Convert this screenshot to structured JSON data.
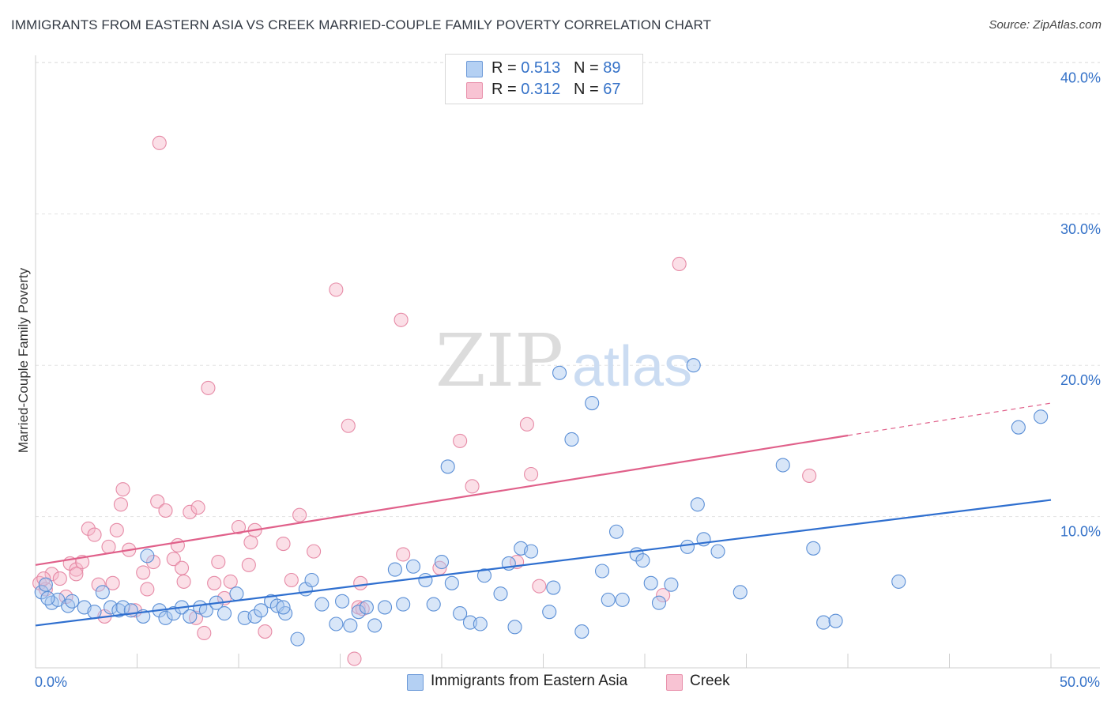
{
  "title": "IMMIGRANTS FROM EASTERN ASIA VS CREEK MARRIED-COUPLE FAMILY POVERTY CORRELATION CHART",
  "source": "Source: ZipAtlas.com",
  "watermark": {
    "zip": "ZIP",
    "atlas": "atlas"
  },
  "colors": {
    "blue_fill": "#a9c8f0",
    "blue_stroke": "#5b8fd6",
    "blue_line": "#2f6fcf",
    "pink_fill": "#f6b7c9",
    "pink_stroke": "#e68aa6",
    "pink_line": "#e0608a",
    "axis_text": "#3572c8",
    "grid": "#e3e3e3"
  },
  "legend": {
    "blue": {
      "r_label": "R = ",
      "r_value": "0.513",
      "n_label": "N = ",
      "n_value": "89"
    },
    "pink": {
      "r_label": "R = ",
      "r_value": "0.312",
      "n_label": "N = ",
      "n_value": "67"
    }
  },
  "chart_data": {
    "type": "scatter",
    "title": "IMMIGRANTS FROM EASTERN ASIA VS CREEK MARRIED-COUPLE FAMILY POVERTY CORRELATION CHART",
    "xlabel": "",
    "ylabel": "Married-Couple Family Poverty",
    "xlim": [
      0,
      50
    ],
    "ylim": [
      0,
      42
    ],
    "x_tick_labels": [
      {
        "value": 0,
        "label": "0.0%"
      },
      {
        "value": 50,
        "label": "50.0%"
      }
    ],
    "y_tick_labels": [
      {
        "value": 10,
        "label": "10.0%"
      },
      {
        "value": 20,
        "label": "20.0%"
      },
      {
        "value": 30,
        "label": "30.0%"
      },
      {
        "value": 40,
        "label": "40.0%"
      }
    ],
    "x_minor_ticks": [
      0,
      5,
      10,
      15,
      20,
      25,
      30,
      35,
      40,
      45,
      50
    ],
    "grid": true,
    "series": [
      {
        "name": "Immigrants from Eastern Asia",
        "color": "blue",
        "r": 0.513,
        "n": 89,
        "trend": {
          "x0": 0,
          "y0": 2.8,
          "x1": 50,
          "y1": 11.1,
          "dashed_from": null
        },
        "points": [
          [
            0.3,
            5.0
          ],
          [
            0.5,
            5.5
          ],
          [
            0.8,
            4.3
          ],
          [
            1.1,
            4.5
          ],
          [
            1.6,
            4.1
          ],
          [
            1.8,
            4.4
          ],
          [
            2.4,
            4.0
          ],
          [
            2.9,
            3.7
          ],
          [
            3.3,
            5.0
          ],
          [
            3.7,
            4.0
          ],
          [
            4.1,
            3.8
          ],
          [
            4.3,
            4.0
          ],
          [
            4.7,
            3.8
          ],
          [
            5.3,
            3.4
          ],
          [
            5.5,
            7.4
          ],
          [
            6.1,
            3.8
          ],
          [
            6.4,
            3.3
          ],
          [
            6.8,
            3.6
          ],
          [
            7.2,
            4.0
          ],
          [
            7.6,
            3.4
          ],
          [
            8.1,
            4.0
          ],
          [
            8.4,
            3.8
          ],
          [
            8.9,
            4.3
          ],
          [
            9.3,
            3.6
          ],
          [
            9.9,
            4.9
          ],
          [
            10.3,
            3.3
          ],
          [
            10.8,
            3.4
          ],
          [
            11.1,
            3.8
          ],
          [
            11.6,
            4.4
          ],
          [
            11.9,
            4.1
          ],
          [
            12.3,
            3.6
          ],
          [
            12.9,
            1.9
          ],
          [
            13.3,
            5.2
          ],
          [
            13.6,
            5.8
          ],
          [
            14.1,
            4.2
          ],
          [
            14.8,
            2.9
          ],
          [
            15.1,
            4.4
          ],
          [
            15.5,
            2.8
          ],
          [
            15.9,
            3.7
          ],
          [
            16.3,
            4.0
          ],
          [
            16.7,
            2.8
          ],
          [
            17.2,
            4.0
          ],
          [
            17.7,
            6.5
          ],
          [
            18.1,
            4.2
          ],
          [
            18.6,
            6.7
          ],
          [
            19.2,
            5.8
          ],
          [
            19.6,
            4.2
          ],
          [
            20.0,
            7.0
          ],
          [
            20.5,
            5.6
          ],
          [
            20.9,
            3.6
          ],
          [
            21.4,
            3.0
          ],
          [
            21.9,
            2.9
          ],
          [
            22.1,
            6.1
          ],
          [
            22.9,
            4.9
          ],
          [
            23.3,
            6.9
          ],
          [
            23.6,
            2.7
          ],
          [
            23.9,
            7.9
          ],
          [
            24.4,
            7.7
          ],
          [
            25.3,
            3.7
          ],
          [
            25.5,
            5.3
          ],
          [
            25.8,
            19.5
          ],
          [
            26.4,
            15.1
          ],
          [
            26.9,
            2.4
          ],
          [
            27.4,
            17.5
          ],
          [
            27.9,
            6.4
          ],
          [
            28.2,
            4.5
          ],
          [
            28.6,
            9.0
          ],
          [
            28.9,
            4.5
          ],
          [
            29.6,
            7.5
          ],
          [
            29.9,
            7.1
          ],
          [
            30.3,
            5.6
          ],
          [
            30.7,
            4.3
          ],
          [
            31.3,
            5.5
          ],
          [
            32.1,
            8.0
          ],
          [
            32.4,
            20.0
          ],
          [
            32.6,
            10.8
          ],
          [
            32.9,
            8.5
          ],
          [
            33.6,
            7.7
          ],
          [
            34.7,
            5.0
          ],
          [
            36.8,
            13.4
          ],
          [
            38.3,
            7.9
          ],
          [
            38.8,
            3.0
          ],
          [
            39.4,
            3.1
          ],
          [
            42.5,
            5.7
          ],
          [
            48.4,
            15.9
          ],
          [
            49.5,
            16.6
          ],
          [
            0.6,
            4.6
          ],
          [
            20.3,
            13.3
          ],
          [
            12.2,
            4.0
          ]
        ]
      },
      {
        "name": "Creek",
        "color": "pink",
        "r": 0.312,
        "n": 67,
        "trend": {
          "x0": 0,
          "y0": 6.8,
          "x1": 50,
          "y1": 17.5,
          "dashed_from": 40
        },
        "points": [
          [
            0.2,
            5.6
          ],
          [
            0.5,
            5.2
          ],
          [
            0.8,
            6.2
          ],
          [
            1.2,
            5.9
          ],
          [
            1.5,
            4.7
          ],
          [
            1.7,
            6.9
          ],
          [
            2.0,
            6.5
          ],
          [
            2.0,
            6.2
          ],
          [
            2.3,
            7.0
          ],
          [
            2.6,
            9.2
          ],
          [
            2.9,
            8.8
          ],
          [
            3.1,
            5.5
          ],
          [
            3.4,
            3.4
          ],
          [
            3.6,
            8.0
          ],
          [
            3.8,
            5.6
          ],
          [
            4.0,
            9.1
          ],
          [
            4.2,
            10.8
          ],
          [
            4.3,
            11.8
          ],
          [
            4.6,
            7.8
          ],
          [
            4.9,
            3.8
          ],
          [
            5.3,
            6.3
          ],
          [
            5.5,
            5.2
          ],
          [
            5.8,
            7.0
          ],
          [
            6.0,
            11.0
          ],
          [
            6.1,
            34.7
          ],
          [
            6.4,
            10.4
          ],
          [
            6.8,
            7.2
          ],
          [
            7.0,
            8.1
          ],
          [
            7.2,
            6.6
          ],
          [
            7.3,
            5.7
          ],
          [
            7.6,
            10.3
          ],
          [
            7.9,
            3.3
          ],
          [
            8.0,
            10.6
          ],
          [
            8.3,
            2.3
          ],
          [
            8.5,
            18.5
          ],
          [
            8.8,
            5.6
          ],
          [
            9.0,
            7.0
          ],
          [
            9.3,
            4.6
          ],
          [
            9.6,
            5.7
          ],
          [
            10.0,
            9.3
          ],
          [
            10.5,
            6.8
          ],
          [
            10.6,
            8.3
          ],
          [
            10.8,
            9.1
          ],
          [
            11.3,
            2.4
          ],
          [
            12.2,
            8.2
          ],
          [
            12.6,
            5.8
          ],
          [
            13.0,
            10.1
          ],
          [
            13.7,
            7.7
          ],
          [
            14.8,
            25.0
          ],
          [
            15.4,
            16.0
          ],
          [
            15.9,
            4.0
          ],
          [
            16.0,
            5.6
          ],
          [
            15.7,
            0.6
          ],
          [
            18.0,
            23.0
          ],
          [
            18.1,
            7.5
          ],
          [
            19.9,
            6.6
          ],
          [
            20.9,
            15.0
          ],
          [
            21.5,
            12.0
          ],
          [
            23.7,
            7.0
          ],
          [
            24.2,
            16.1
          ],
          [
            24.4,
            12.8
          ],
          [
            24.8,
            5.4
          ],
          [
            30.9,
            4.8
          ],
          [
            31.7,
            26.7
          ],
          [
            38.1,
            12.7
          ],
          [
            0.4,
            5.9
          ],
          [
            16.1,
            3.9
          ]
        ]
      }
    ]
  },
  "bottom_legend": {
    "blue_label": "Immigrants from Eastern Asia",
    "pink_label": "Creek"
  }
}
